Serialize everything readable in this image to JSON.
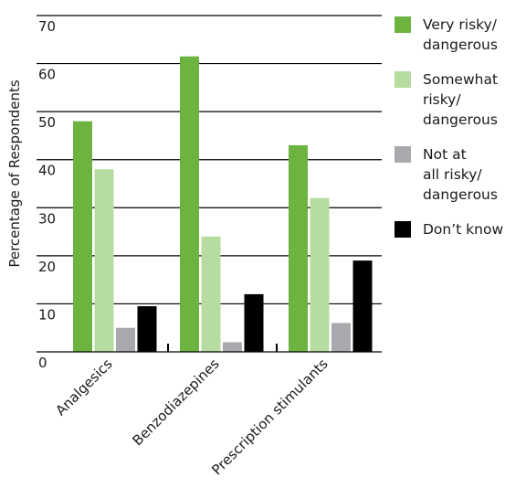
{
  "chart_data": {
    "type": "bar",
    "categories": [
      "Analgesics",
      "Benzodiazepines",
      "Prescription stimulants"
    ],
    "series": [
      {
        "name": "Very risky/ dangerous",
        "name_lines": [
          "Very risky/",
          "dangerous"
        ],
        "color": "#6db33f",
        "values": [
          48,
          61.5,
          43
        ]
      },
      {
        "name": "Somewhat risky/ dangerous",
        "name_lines": [
          "Somewhat",
          "risky/",
          "dangerous"
        ],
        "color": "#b6dca0",
        "values": [
          38,
          24,
          32
        ]
      },
      {
        "name": "Not at all risky/ dangerous",
        "name_lines": [
          "Not at",
          "all risky/",
          "dangerous"
        ],
        "color": "#a7a9ac",
        "values": [
          5,
          2,
          6
        ]
      },
      {
        "name": "Don't know",
        "name_lines": [
          "Don’t know"
        ],
        "color": "#000000",
        "values": [
          9.5,
          12,
          19
        ]
      }
    ],
    "title": "",
    "xlabel": "",
    "ylabel": "Percentage of Respondents",
    "ylim": [
      0,
      70
    ],
    "yticks": [
      0,
      10,
      20,
      30,
      40,
      50,
      60,
      70
    ],
    "ytick_labels": [
      "0",
      "10",
      "20",
      "30",
      "40",
      "50",
      "60",
      "70"
    ],
    "grid": true,
    "legend_position": "right"
  }
}
